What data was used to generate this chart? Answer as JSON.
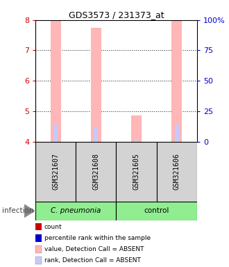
{
  "title": "GDS3573 / 231373_at",
  "samples": [
    "GSM321607",
    "GSM321608",
    "GSM321605",
    "GSM321606"
  ],
  "bar_color_absent": "#FFB6B6",
  "bar_color_absent_rank": "#C8C8FF",
  "ylim": [
    4,
    8
  ],
  "yticks": [
    4,
    5,
    6,
    7,
    8
  ],
  "ytick_labels_left": [
    "4",
    "5",
    "6",
    "7",
    "8"
  ],
  "ytick_labels_right": [
    "0",
    "25",
    "50",
    "75",
    "100%"
  ],
  "value_bars": [
    8.0,
    7.75,
    4.85,
    8.0
  ],
  "rank_bars": [
    4.55,
    4.5,
    4.08,
    4.55
  ],
  "bar_bottom": 4.0,
  "bar_width": 0.25,
  "rank_bar_width": 0.1,
  "legend_items": [
    {
      "color": "#CC0000",
      "label": "count"
    },
    {
      "color": "#0000CC",
      "label": "percentile rank within the sample"
    },
    {
      "color": "#FFB6B6",
      "label": "value, Detection Call = ABSENT"
    },
    {
      "color": "#C8C8FF",
      "label": "rank, Detection Call = ABSENT"
    }
  ],
  "left_axis_color": "#CC0000",
  "right_axis_color": "#0000CC",
  "group_box_color": "#90EE90",
  "sample_box_color": "#D3D3D3",
  "infection_label": "infection",
  "group_labels": [
    "C. pneumonia",
    "control"
  ]
}
